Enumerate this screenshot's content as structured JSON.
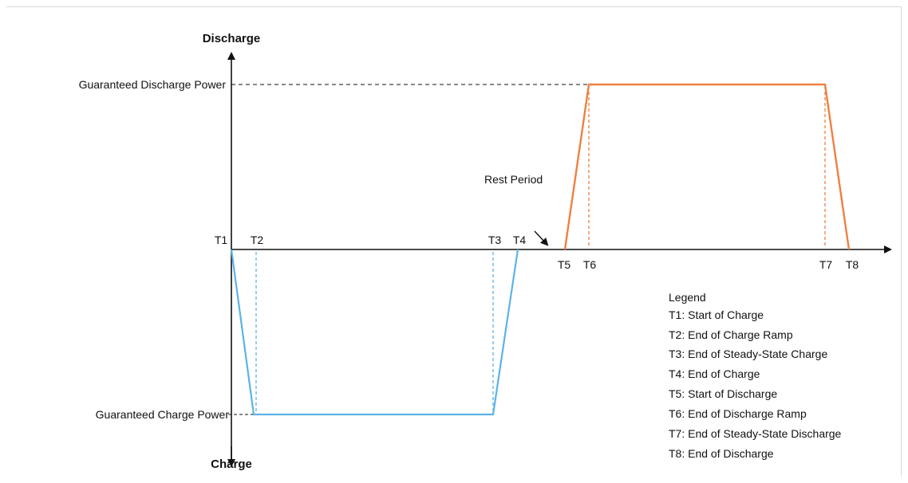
{
  "axes": {
    "y_top_label": "Discharge",
    "y_bottom_label": "Charge"
  },
  "levels": {
    "discharge_label": "Guaranteed Discharge Power",
    "charge_label": "Guaranteed Charge Power"
  },
  "annotations": {
    "rest_period": "Rest Period"
  },
  "time_markers": [
    "T1",
    "T2",
    "T3",
    "T4",
    "T5",
    "T6",
    "T7",
    "T8"
  ],
  "legend": {
    "title": "Legend",
    "items": [
      "T1: Start of Charge",
      "T2: End of Charge Ramp",
      "T3: End of Steady-State Charge",
      "T4: End of Charge",
      "T5: Start of Discharge",
      "T6: End of Discharge Ramp",
      "T7: End of Steady-State Discharge",
      "T8: End of Discharge"
    ]
  },
  "colors": {
    "charge_line": "#5cb3e6",
    "discharge_line": "#ef8040",
    "axis": "#111111"
  }
}
